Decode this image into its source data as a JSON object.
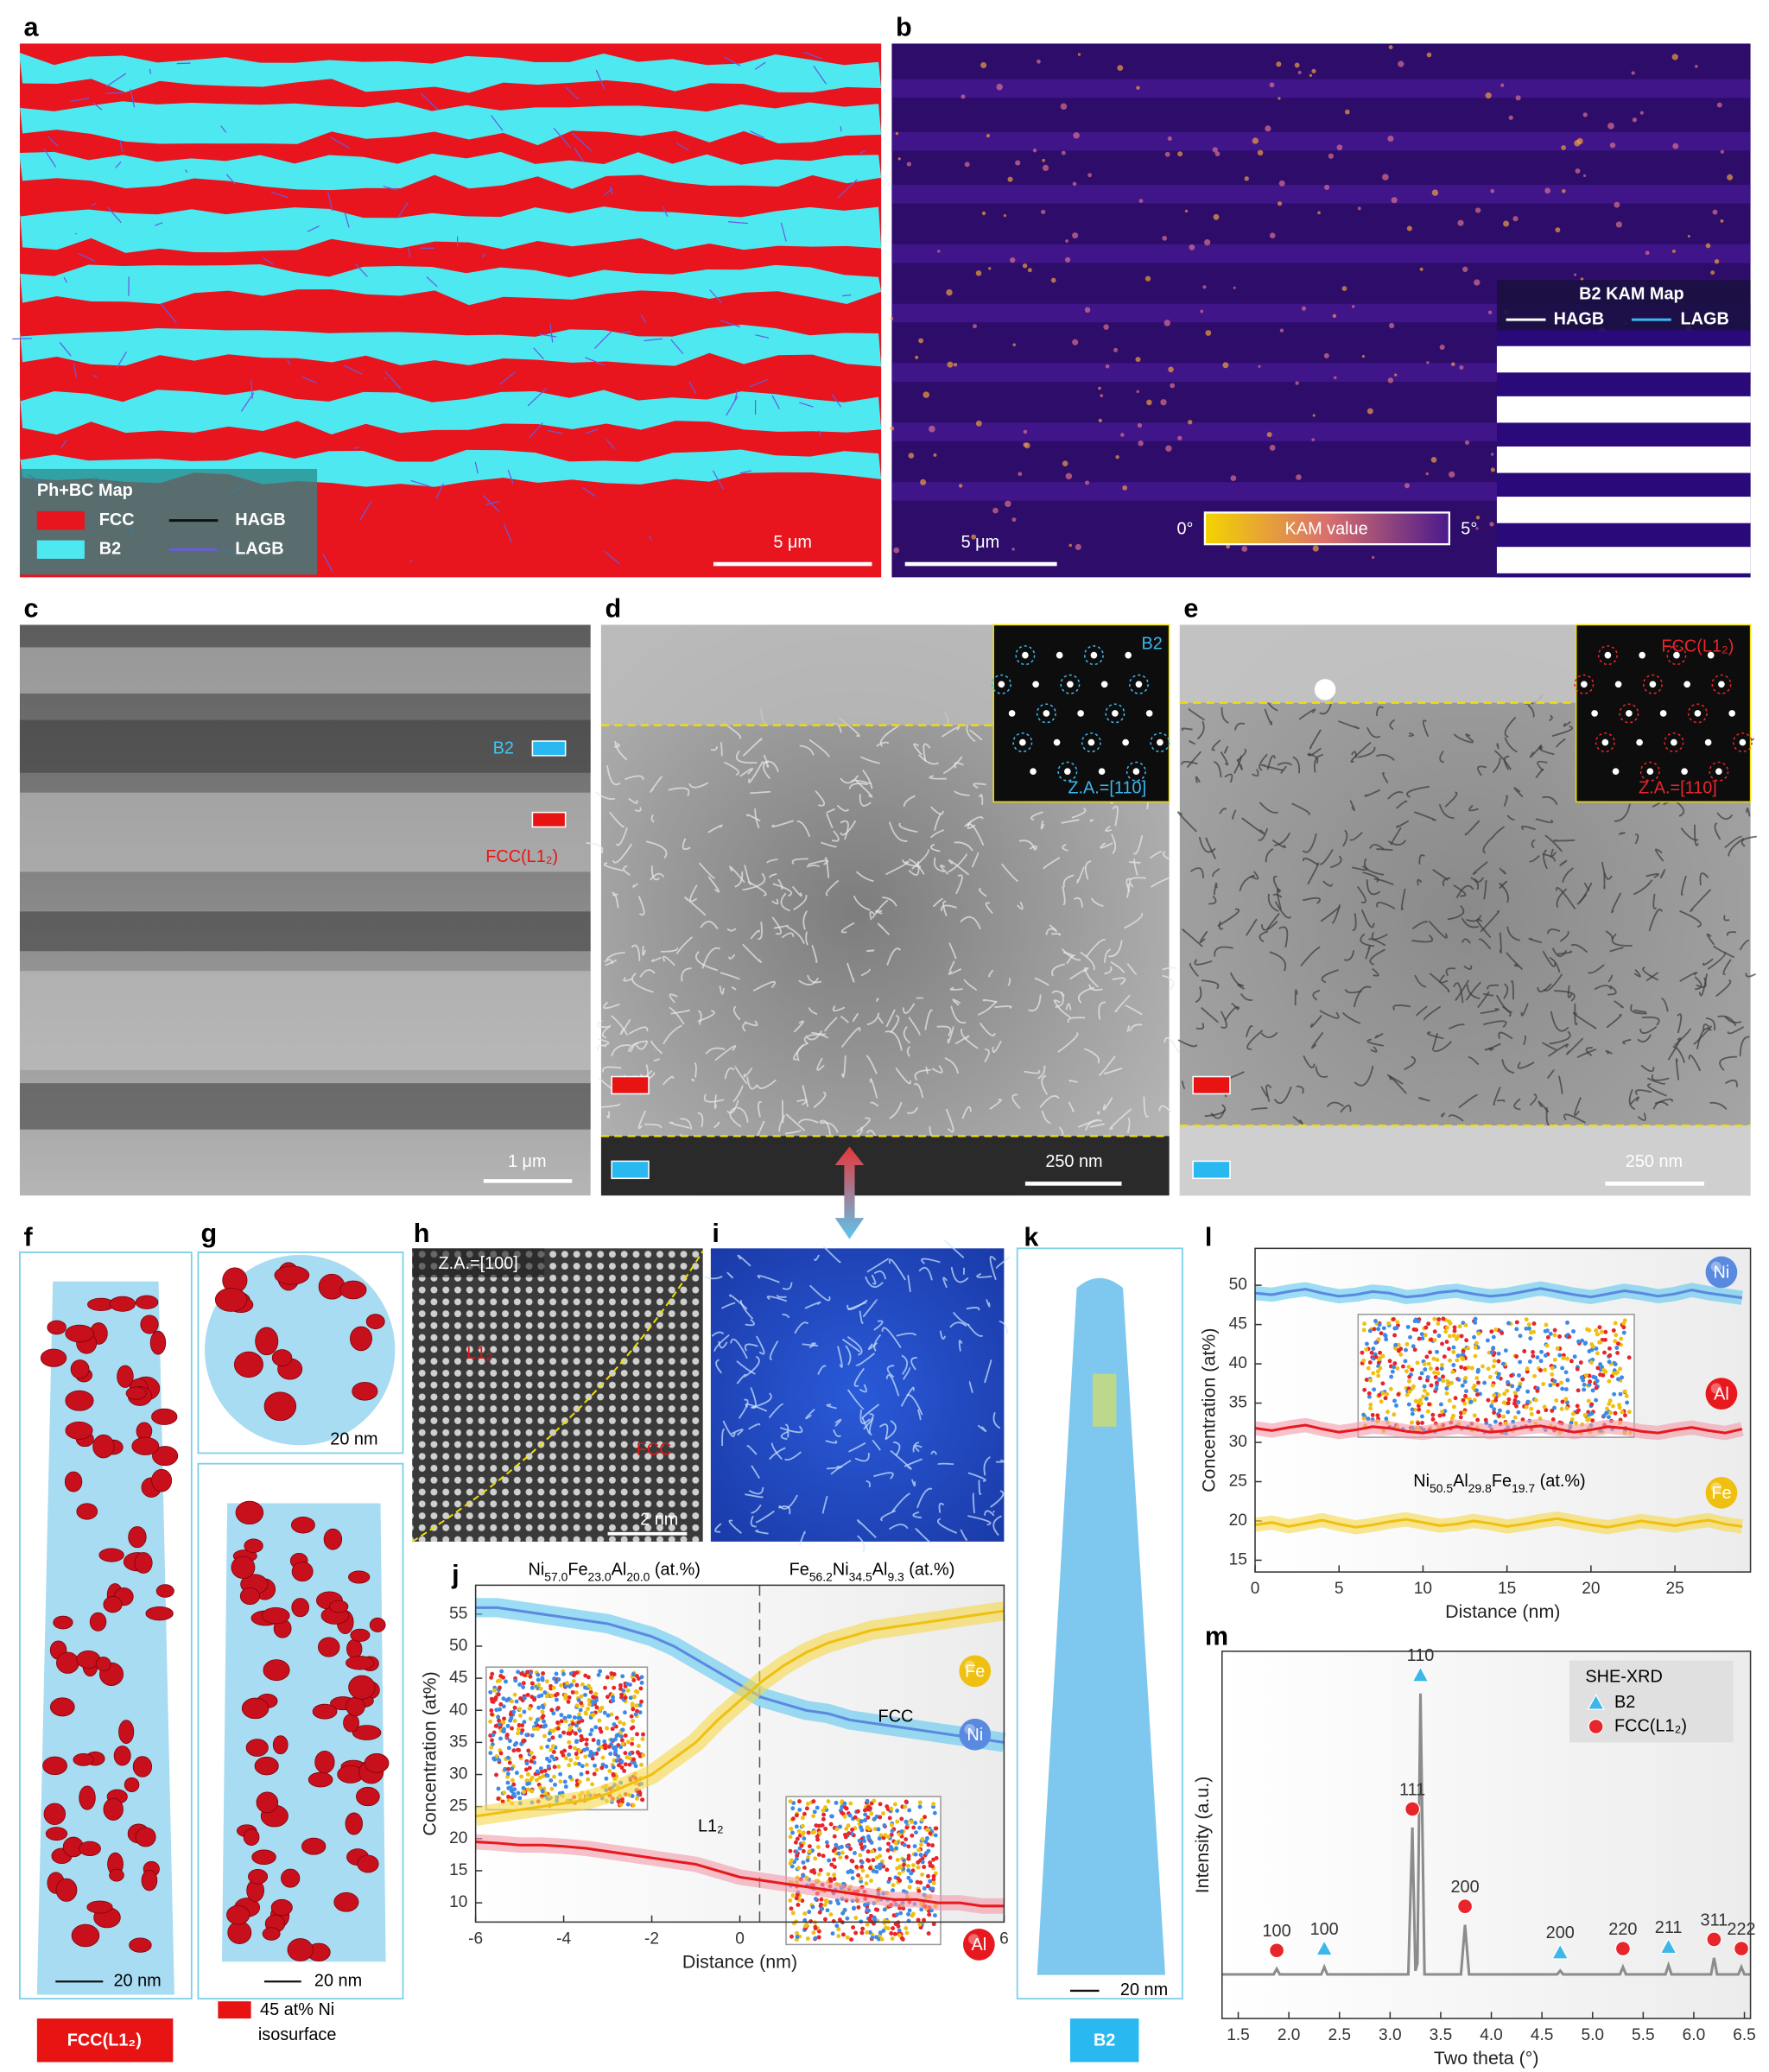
{
  "panel_labels": [
    "a",
    "b",
    "c",
    "d",
    "e",
    "f",
    "g",
    "h",
    "i",
    "j",
    "k",
    "l",
    "m"
  ],
  "a": {
    "legend_title": "Ph+BC Map",
    "legend": [
      "FCC",
      "B2",
      "HAGB",
      "LAGB"
    ],
    "scale_bar": "5 μm"
  },
  "b": {
    "scale_bar": "5 μm",
    "colorbar": [
      "0°",
      "KAM value",
      "5°"
    ],
    "inset_title": "B2 KAM Map",
    "inset_legend": [
      "HAGB",
      "LAGB"
    ]
  },
  "c": {
    "labels": [
      "B2",
      "FCC(L1₂)"
    ],
    "scale_bar": "1 μm"
  },
  "d": {
    "phase": "B2",
    "zone_axis": "Z.A.=[110]",
    "scale_bar": "250 nm"
  },
  "e": {
    "phase": "FCC(L1₂)",
    "zone_axis": "Z.A.=[110]",
    "scale_bar": "250 nm"
  },
  "f": {
    "scale_bar": "20 nm",
    "phase": "FCC(L1₂)"
  },
  "g": {
    "scale_bars": [
      "20 nm",
      "20 nm"
    ],
    "legend": [
      "45 at% Ni",
      "isosurface"
    ]
  },
  "h": {
    "zone_axis": "Z.A.=[100]",
    "labels": [
      "L1₂",
      "FCC"
    ],
    "scale_bar": "2 nm"
  },
  "k": {
    "scale_bar": "20 nm",
    "phase": "B2"
  },
  "chart_data": [
    {
      "type": "line",
      "title_left": "Ni57.0Fe23.0Al20.0 (at.%)",
      "title_right": "Fe56.2Ni34.5Al9.3 (at.%)",
      "annotations": [
        "L1₂",
        "FCC"
      ],
      "interface": 0.45,
      "x_label": "Distance (nm)",
      "y_label": "Concentration (at%)",
      "x": [
        -6,
        -5.5,
        -5,
        -4.5,
        -4,
        -3.5,
        -3,
        -2.5,
        -2,
        -1.5,
        -1,
        -0.5,
        0,
        0.5,
        1,
        1.5,
        2,
        2.5,
        3,
        3.5,
        4,
        4.5,
        5,
        5.5,
        6
      ],
      "series": [
        {
          "name": "Ni",
          "color": "#5a8ae0",
          "band_color": "#5cc6ee",
          "error": 1.5,
          "values": [
            56,
            56,
            55.5,
            55,
            54.5,
            54,
            53.5,
            52.5,
            51.5,
            50,
            48,
            46,
            44,
            42,
            41,
            40,
            39.5,
            38.5,
            38,
            37.5,
            37,
            36.5,
            36,
            35.5,
            35
          ]
        },
        {
          "name": "Fe",
          "color": "#f0c010",
          "band_color": "#f6d74a",
          "error": 1.5,
          "values": [
            23.5,
            24,
            24.5,
            25,
            25.5,
            26,
            27,
            28.5,
            30,
            32.5,
            35,
            38.5,
            41.5,
            44.5,
            47,
            49,
            50.5,
            51.5,
            52.5,
            53,
            53.5,
            54,
            54.5,
            55,
            55.5
          ]
        },
        {
          "name": "Al",
          "color": "#e8191e",
          "band_color": "#f19aa8",
          "error": 1.2,
          "values": [
            19.5,
            19.3,
            19,
            19,
            18.8,
            18.5,
            18,
            17.5,
            17,
            16.5,
            16,
            15,
            14,
            13.5,
            13,
            12.5,
            12,
            11.5,
            11,
            10.5,
            10.5,
            10,
            10,
            9.5,
            9.5
          ]
        }
      ],
      "xlim": [
        -6,
        6
      ],
      "ylim": [
        7,
        59.5
      ],
      "xticks": [
        -6,
        -4,
        -2,
        0,
        2,
        4,
        6
      ],
      "yticks": [
        10,
        15,
        20,
        25,
        30,
        35,
        40,
        45,
        50,
        55
      ]
    },
    {
      "type": "line",
      "annotation": "Ni50.5Al29.8Fe19.7 (at.%)",
      "x_label": "Distance (nm)",
      "y_label": "Concentration (at%)",
      "x": [
        0,
        1,
        2,
        3,
        4,
        5,
        6,
        7,
        8,
        9,
        10,
        11,
        12,
        13,
        14,
        15,
        16,
        17,
        18,
        19,
        20,
        21,
        22,
        23,
        24,
        25,
        26,
        27,
        28,
        29
      ],
      "series": [
        {
          "name": "Ni",
          "color": "#5a8ae0",
          "band_color": "#5cc6ee",
          "error": 0.9,
          "values": [
            49,
            48.8,
            49.2,
            49.5,
            49,
            48.6,
            48.8,
            49.2,
            49,
            48.5,
            48.7,
            49.1,
            49.3,
            48.9,
            48.6,
            48.8,
            49.2,
            49.6,
            49.2,
            48.8,
            48.5,
            48.9,
            49.3,
            49,
            48.6,
            48.9,
            49.4,
            49,
            48.7,
            48.4
          ]
        },
        {
          "name": "Al",
          "color": "#e8191e",
          "band_color": "#f19aa8",
          "error": 0.9,
          "values": [
            31.8,
            31.5,
            31.9,
            32.2,
            31.7,
            31.3,
            31.6,
            32,
            31.8,
            31.4,
            31.2,
            31.6,
            32,
            31.7,
            31.3,
            31.5,
            31.9,
            32.1,
            31.7,
            31.3,
            31.6,
            32,
            31.8,
            31.4,
            31.2,
            31.6,
            31.9,
            31.5,
            31.2,
            31.7
          ]
        },
        {
          "name": "Fe",
          "color": "#f0c010",
          "band_color": "#f6d74a",
          "error": 0.9,
          "values": [
            19.5,
            19.8,
            19.3,
            19.7,
            20.1,
            19.6,
            19.2,
            19.5,
            19.9,
            20.2,
            19.8,
            19.4,
            19.6,
            20,
            19.7,
            19.3,
            19.6,
            20,
            20.3,
            19.9,
            19.5,
            19.2,
            19.6,
            20,
            19.7,
            19.4,
            19.8,
            20.1,
            19.6,
            19.3
          ]
        }
      ],
      "xlim": [
        0,
        29.5
      ],
      "ylim": [
        13.5,
        54.7
      ],
      "xticks": [
        0,
        5,
        10,
        15,
        20,
        25
      ],
      "yticks": [
        15,
        20,
        25,
        30,
        35,
        40,
        45,
        50
      ]
    },
    {
      "type": "xrd",
      "legend_title": "SHE-XRD",
      "x_label": "Two theta (°)",
      "y_label": "Intensity (a.u.)",
      "line": {
        "color": "#8c8c8c",
        "x": [
          1.34,
          1.85,
          1.88,
          1.91,
          2.32,
          2.35,
          2.38,
          3.18,
          3.22,
          3.25,
          3.27,
          3.3,
          3.34,
          3.7,
          3.74,
          3.78,
          4.65,
          4.68,
          4.71,
          5.27,
          5.3,
          5.33,
          5.72,
          5.75,
          5.78,
          6.17,
          6.2,
          6.23,
          6.44,
          6.47,
          6.5,
          6.56
        ],
        "values": [
          0.12,
          0.12,
          0.135,
          0.12,
          0.12,
          0.14,
          0.12,
          0.12,
          0.52,
          0.13,
          0.15,
          0.885,
          0.12,
          0.12,
          0.255,
          0.12,
          0.12,
          0.13,
          0.12,
          0.12,
          0.14,
          0.12,
          0.12,
          0.145,
          0.12,
          0.12,
          0.165,
          0.12,
          0.12,
          0.14,
          0.12,
          0.12
        ]
      },
      "series": [
        {
          "name": "B2",
          "marker": "triangle",
          "color": "#3cb7e8",
          "x": [
            2.35,
            3.3,
            4.68,
            5.75
          ],
          "values": [
            0.14,
            0.885,
            0.13,
            0.145
          ],
          "labels": [
            "100",
            "110",
            "200",
            "211"
          ]
        },
        {
          "name": "FCC(L1₂)",
          "marker": "circle",
          "color": "#e8252a",
          "x": [
            1.88,
            3.22,
            3.74,
            5.3,
            6.2,
            6.47
          ],
          "values": [
            0.135,
            0.52,
            0.255,
            0.14,
            0.165,
            0.14
          ],
          "labels": [
            "100",
            "111",
            "200",
            "220",
            "311",
            "222"
          ]
        }
      ],
      "xlim": [
        1.34,
        6.56
      ],
      "ylim": [
        0,
        1
      ],
      "xticks": [
        1.5,
        {
          "value": 2,
          "label": "2.0"
        },
        2.5,
        {
          "value": 3,
          "label": "3.0"
        },
        3.5,
        {
          "value": 4,
          "label": "4.0"
        },
        4.5,
        {
          "value": 5,
          "label": "5.0"
        },
        5.5,
        {
          "value": 6,
          "label": "6.0"
        },
        6.5
      ]
    }
  ]
}
